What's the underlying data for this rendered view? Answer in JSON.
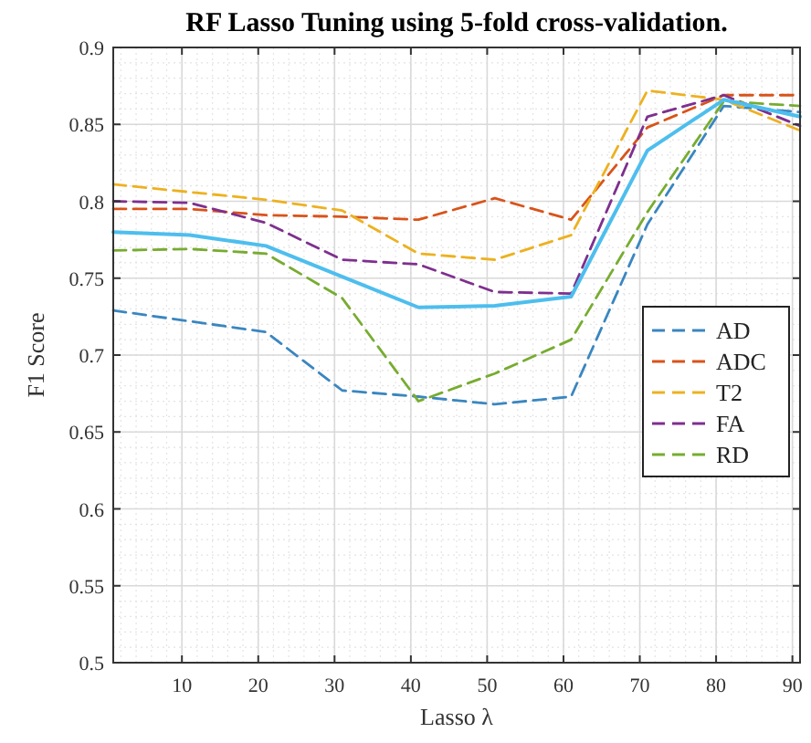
{
  "chart_data": {
    "type": "line",
    "title": "RF Lasso Tuning using 5-fold cross-validation.",
    "xlabel": "Lasso λ",
    "ylabel": "F1 Score",
    "x": [
      1,
      11,
      21,
      31,
      41,
      51,
      61,
      71,
      81,
      91
    ],
    "xlim": [
      1,
      91
    ],
    "xticks": [
      10,
      20,
      30,
      40,
      50,
      60,
      70,
      80,
      90
    ],
    "ylim": [
      0.5,
      0.9
    ],
    "yticks": [
      0.5,
      0.55,
      0.6,
      0.65,
      0.7,
      0.75,
      0.8,
      0.85,
      0.9
    ],
    "grid": true,
    "legend": "right",
    "line_style": "dashed",
    "series": [
      {
        "name": "AD",
        "color": "#3a86c0",
        "values": [
          0.729,
          0.722,
          0.715,
          0.677,
          0.673,
          0.668,
          0.673,
          0.785,
          0.862,
          0.858
        ]
      },
      {
        "name": "ADC",
        "color": "#d95319",
        "values": [
          0.795,
          0.795,
          0.791,
          0.79,
          0.788,
          0.802,
          0.788,
          0.848,
          0.869,
          0.869
        ]
      },
      {
        "name": "T2",
        "color": "#edb120",
        "values": [
          0.811,
          0.806,
          0.801,
          0.794,
          0.766,
          0.762,
          0.778,
          0.872,
          0.866,
          0.846
        ]
      },
      {
        "name": "FA",
        "color": "#7e2f8e",
        "values": [
          0.8,
          0.799,
          0.786,
          0.762,
          0.759,
          0.741,
          0.74,
          0.855,
          0.869,
          0.849
        ]
      },
      {
        "name": "RD",
        "color": "#77ac30",
        "values": [
          0.768,
          0.769,
          0.766,
          0.737,
          0.67,
          0.688,
          0.71,
          0.793,
          0.865,
          0.862
        ]
      },
      {
        "color": "#4dbeee",
        "line_style": "solid",
        "values": [
          0.78,
          0.778,
          0.771,
          0.751,
          0.731,
          0.732,
          0.738,
          0.833,
          0.866,
          0.855
        ]
      }
    ]
  }
}
